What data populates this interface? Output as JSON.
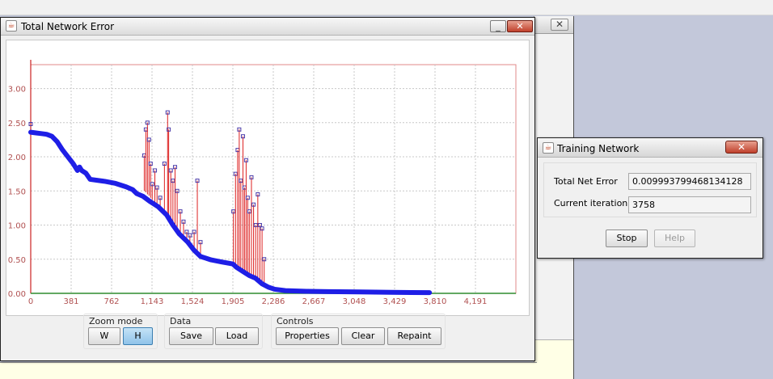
{
  "main_window": {
    "title": "Total Network Error",
    "minimize_glyph": "_",
    "close_glyph": "✕",
    "icon": "java-cup-icon"
  },
  "background_window": {
    "close_glyph": "✕"
  },
  "chart_data": {
    "type": "line",
    "title": "",
    "xlabel": "",
    "ylabel": "",
    "xlim": [
      0,
      4572
    ],
    "ylim": [
      0,
      3.35
    ],
    "grid": true,
    "x_ticks": [
      "0",
      "381",
      "762",
      "1,143",
      "1,524",
      "1,905",
      "2,286",
      "2,667",
      "3,048",
      "3,429",
      "3,810",
      "4,191"
    ],
    "x_tick_values": [
      0,
      381,
      762,
      1143,
      1524,
      1905,
      2286,
      2667,
      3048,
      3429,
      3810,
      4191
    ],
    "y_ticks": [
      "0.00",
      "0.50",
      "1.00",
      "1.50",
      "2.00",
      "2.50",
      "3.00"
    ],
    "y_tick_values": [
      0,
      0.5,
      1.0,
      1.5,
      2.0,
      2.5,
      3.0
    ],
    "series_color": "#1e1ee6",
    "spike_color": "#dd2020",
    "baseline_color": "#2e8b2e",
    "series": [
      {
        "values_description_points": [
          [
            0,
            2.36
          ],
          [
            50,
            2.35
          ],
          [
            100,
            2.34
          ],
          [
            150,
            2.33
          ],
          [
            200,
            2.3
          ],
          [
            250,
            2.22
          ],
          [
            300,
            2.1
          ],
          [
            350,
            2.0
          ],
          [
            400,
            1.9
          ],
          [
            440,
            1.8
          ],
          [
            460,
            1.85
          ],
          [
            480,
            1.8
          ],
          [
            520,
            1.76
          ],
          [
            560,
            1.67
          ],
          [
            700,
            1.64
          ],
          [
            800,
            1.61
          ],
          [
            900,
            1.56
          ],
          [
            960,
            1.52
          ],
          [
            1000,
            1.46
          ],
          [
            1060,
            1.42
          ],
          [
            1120,
            1.35
          ],
          [
            1200,
            1.27
          ],
          [
            1280,
            1.15
          ],
          [
            1340,
            1.0
          ],
          [
            1400,
            0.87
          ],
          [
            1480,
            0.75
          ],
          [
            1540,
            0.63
          ],
          [
            1600,
            0.54
          ],
          [
            1700,
            0.49
          ],
          [
            1800,
            0.46
          ],
          [
            1870,
            0.44
          ],
          [
            1905,
            0.43
          ],
          [
            1940,
            0.38
          ],
          [
            2000,
            0.32
          ],
          [
            2060,
            0.26
          ],
          [
            2120,
            0.22
          ],
          [
            2180,
            0.14
          ],
          [
            2240,
            0.09
          ],
          [
            2300,
            0.06
          ],
          [
            2400,
            0.04
          ],
          [
            2600,
            0.03
          ],
          [
            2800,
            0.025
          ],
          [
            3100,
            0.02
          ],
          [
            3400,
            0.015
          ],
          [
            3758,
            0.01
          ]
        ],
        "spikes": [
          [
            1070,
            1.5,
            2.02
          ],
          [
            1085,
            1.48,
            2.4
          ],
          [
            1100,
            1.45,
            2.5
          ],
          [
            1115,
            1.43,
            2.25
          ],
          [
            1130,
            1.4,
            1.9
          ],
          [
            1145,
            1.37,
            1.6
          ],
          [
            1170,
            1.33,
            1.8
          ],
          [
            1190,
            1.3,
            1.55
          ],
          [
            1220,
            1.25,
            1.4
          ],
          [
            1260,
            1.18,
            1.9
          ],
          [
            1290,
            1.12,
            2.65
          ],
          [
            1300,
            1.1,
            2.4
          ],
          [
            1320,
            1.05,
            1.8
          ],
          [
            1340,
            1.0,
            1.65
          ],
          [
            1360,
            0.95,
            1.85
          ],
          [
            1380,
            0.92,
            1.5
          ],
          [
            1410,
            0.86,
            1.2
          ],
          [
            1440,
            0.8,
            1.05
          ],
          [
            1470,
            0.76,
            0.9
          ],
          [
            1500,
            0.7,
            0.85
          ],
          [
            1540,
            0.63,
            0.9
          ],
          [
            1570,
            0.58,
            1.65
          ],
          [
            1600,
            0.54,
            0.75
          ],
          [
            1910,
            0.42,
            1.2
          ],
          [
            1930,
            0.4,
            1.75
          ],
          [
            1950,
            0.38,
            2.1
          ],
          [
            1965,
            0.36,
            2.4
          ],
          [
            1980,
            0.35,
            1.65
          ],
          [
            2000,
            0.32,
            2.3
          ],
          [
            2015,
            0.3,
            1.55
          ],
          [
            2030,
            0.29,
            1.95
          ],
          [
            2045,
            0.28,
            1.4
          ],
          [
            2060,
            0.26,
            1.2
          ],
          [
            2080,
            0.25,
            1.7
          ],
          [
            2100,
            0.23,
            1.3
          ],
          [
            2120,
            0.22,
            1.0
          ],
          [
            2140,
            0.2,
            1.45
          ],
          [
            2160,
            0.17,
            1.0
          ],
          [
            2180,
            0.14,
            0.95
          ],
          [
            2200,
            0.12,
            0.5
          ]
        ]
      }
    ]
  },
  "zoom_group": {
    "label": "Zoom mode",
    "w_label": "W",
    "h_label": "H"
  },
  "data_group": {
    "label": "Data",
    "save_label": "Save",
    "load_label": "Load"
  },
  "controls_group": {
    "label": "Controls",
    "properties_label": "Properties",
    "clear_label": "Clear",
    "repaint_label": "Repaint"
  },
  "training_dialog": {
    "title": "Training Network",
    "close_glyph": "✕",
    "error_label": "Total Net Error",
    "error_value": "0.009993799468134128",
    "iteration_label": "Current iteration",
    "iteration_value": "3758",
    "stop_label": "Stop",
    "help_label": "Help"
  }
}
